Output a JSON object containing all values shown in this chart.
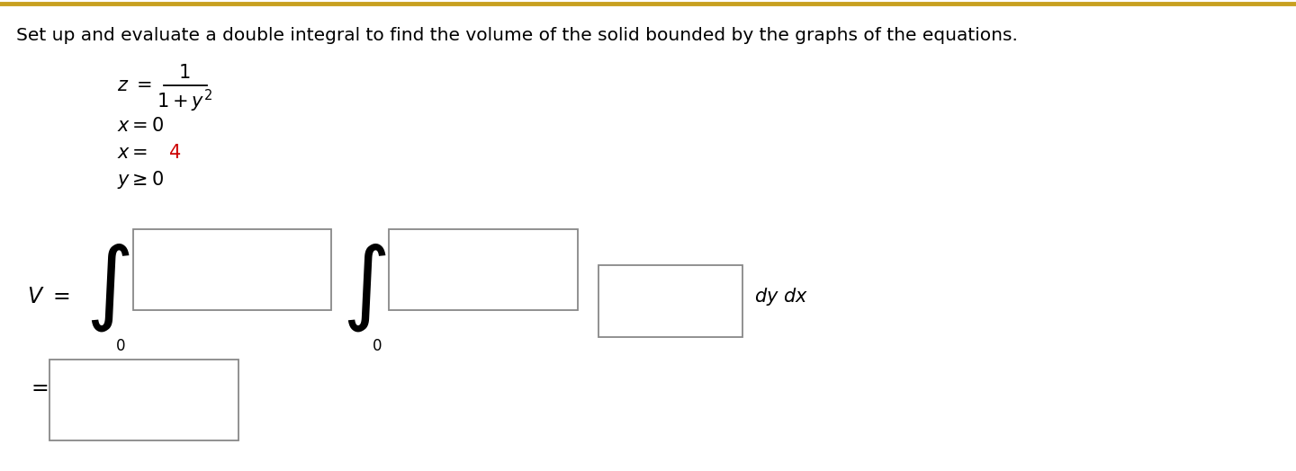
{
  "title": "Set up and evaluate a double integral to find the volume of the solid bounded by the graphs of the equations.",
  "title_fontsize": 14.5,
  "title_color": "#000000",
  "background_color": "#ffffff",
  "border_color": "#c8a020",
  "color_normal": "#000000",
  "color_red": "#cc0000",
  "box_line_color": "#888888"
}
